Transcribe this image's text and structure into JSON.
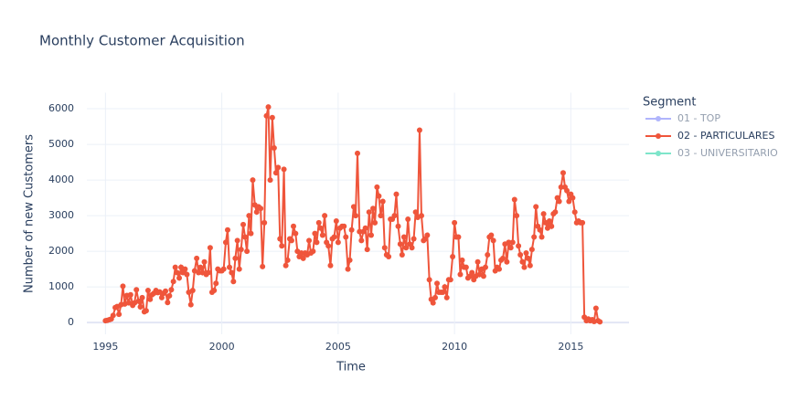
{
  "chart_data": {
    "type": "line",
    "title": "Monthly Customer Acquisition",
    "x_label": "Time",
    "y_label": "Number of new Customers",
    "legend_title": "Segment",
    "xlim": [
      1994.2,
      2017.5
    ],
    "xticks": [
      1995,
      2000,
      2005,
      2010,
      2015
    ],
    "ylim": [
      -330,
      6450
    ],
    "yticks": [
      0,
      1000,
      2000,
      3000,
      4000,
      5000,
      6000
    ],
    "grid": true,
    "legend": "right",
    "x": [
      1995.0,
      1995.08,
      1995.17,
      1995.25,
      1995.33,
      1995.42,
      1995.5,
      1995.58,
      1995.67,
      1995.75,
      1995.83,
      1995.92,
      1996.0,
      1996.08,
      1996.17,
      1996.25,
      1996.33,
      1996.42,
      1996.5,
      1996.58,
      1996.67,
      1996.75,
      1996.83,
      1996.92,
      1997.0,
      1997.08,
      1997.17,
      1997.25,
      1997.33,
      1997.42,
      1997.5,
      1997.58,
      1997.67,
      1997.75,
      1997.83,
      1997.92,
      1998.0,
      1998.08,
      1998.17,
      1998.25,
      1998.33,
      1998.42,
      1998.5,
      1998.58,
      1998.67,
      1998.75,
      1998.83,
      1998.92,
      1999.0,
      1999.08,
      1999.17,
      1999.25,
      1999.33,
      1999.42,
      1999.5,
      1999.58,
      1999.67,
      1999.75,
      1999.83,
      1999.92,
      2000.0,
      2000.08,
      2000.17,
      2000.25,
      2000.33,
      2000.42,
      2000.5,
      2000.58,
      2000.67,
      2000.75,
      2000.83,
      2000.92,
      2001.0,
      2001.08,
      2001.17,
      2001.25,
      2001.33,
      2001.42,
      2001.5,
      2001.58,
      2001.67,
      2001.75,
      2001.83,
      2001.92,
      2002.0,
      2002.08,
      2002.17,
      2002.25,
      2002.33,
      2002.42,
      2002.5,
      2002.58,
      2002.67,
      2002.75,
      2002.83,
      2002.92,
      2003.0,
      2003.08,
      2003.17,
      2003.25,
      2003.33,
      2003.42,
      2003.5,
      2003.58,
      2003.67,
      2003.75,
      2003.83,
      2003.92,
      2004.0,
      2004.08,
      2004.17,
      2004.25,
      2004.33,
      2004.42,
      2004.5,
      2004.58,
      2004.67,
      2004.75,
      2004.83,
      2004.92,
      2005.0,
      2005.08,
      2005.17,
      2005.25,
      2005.33,
      2005.42,
      2005.5,
      2005.58,
      2005.67,
      2005.75,
      2005.83,
      2005.92,
      2006.0,
      2006.08,
      2006.17,
      2006.25,
      2006.33,
      2006.42,
      2006.5,
      2006.58,
      2006.67,
      2006.75,
      2006.83,
      2006.92,
      2007.0,
      2007.08,
      2007.17,
      2007.25,
      2007.33,
      2007.42,
      2007.5,
      2007.58,
      2007.67,
      2007.75,
      2007.83,
      2007.92,
      2008.0,
      2008.08,
      2008.17,
      2008.25,
      2008.33,
      2008.42,
      2008.5,
      2008.58,
      2008.67,
      2008.75,
      2008.83,
      2008.92,
      2009.0,
      2009.08,
      2009.17,
      2009.25,
      2009.33,
      2009.42,
      2009.5,
      2009.58,
      2009.67,
      2009.75,
      2009.83,
      2009.92,
      2010.0,
      2010.08,
      2010.17,
      2010.25,
      2010.33,
      2010.42,
      2010.5,
      2010.58,
      2010.67,
      2010.75,
      2010.83,
      2010.92,
      2011.0,
      2011.08,
      2011.17,
      2011.25,
      2011.33,
      2011.42,
      2011.5,
      2011.58,
      2011.67,
      2011.75,
      2011.83,
      2011.92,
      2012.0,
      2012.08,
      2012.17,
      2012.25,
      2012.33,
      2012.42,
      2012.5,
      2012.58,
      2012.67,
      2012.75,
      2012.83,
      2012.92,
      2013.0,
      2013.08,
      2013.17,
      2013.25,
      2013.33,
      2013.42,
      2013.5,
      2013.58,
      2013.67,
      2013.75,
      2013.83,
      2013.92,
      2014.0,
      2014.08,
      2014.17,
      2014.25,
      2014.33,
      2014.42,
      2014.5,
      2014.58,
      2014.67,
      2014.75,
      2014.83,
      2014.92,
      2015.0,
      2015.08,
      2015.17,
      2015.25,
      2015.33,
      2015.42,
      2015.5,
      2015.58,
      2015.67,
      2015.75,
      2015.83,
      2015.92,
      2016.0,
      2016.08,
      2016.17,
      2016.25
    ],
    "series": [
      {
        "name": "01 - TOP",
        "color": "#636efa",
        "visible": "legendonly"
      },
      {
        "name": "02 - PARTICULARES",
        "color": "#EF553B",
        "visible": true,
        "values": [
          50,
          60,
          80,
          100,
          200,
          420,
          450,
          230,
          500,
          1020,
          520,
          760,
          550,
          780,
          480,
          550,
          920,
          600,
          440,
          700,
          300,
          330,
          900,
          650,
          780,
          820,
          900,
          840,
          860,
          700,
          820,
          880,
          560,
          750,
          920,
          1150,
          1550,
          1400,
          1250,
          1550,
          1400,
          1500,
          1350,
          850,
          500,
          900,
          1450,
          1800,
          1400,
          1550,
          1400,
          1700,
          1350,
          1400,
          2100,
          850,
          900,
          1100,
          1500,
          1450,
          1450,
          1500,
          2250,
          2600,
          1550,
          1400,
          1150,
          1800,
          2300,
          1500,
          2050,
          2750,
          2400,
          2000,
          3000,
          2500,
          4000,
          3300,
          3100,
          3250,
          3200,
          1570,
          2800,
          5800,
          6050,
          4000,
          5750,
          4900,
          4200,
          4350,
          2350,
          2150,
          4300,
          1600,
          1750,
          2350,
          2300,
          2700,
          2500,
          2000,
          1850,
          1950,
          1800,
          1950,
          1900,
          2300,
          1950,
          2000,
          2500,
          2250,
          2800,
          2650,
          2450,
          3000,
          2250,
          2150,
          1600,
          2350,
          2400,
          2850,
          2250,
          2650,
          2700,
          2700,
          2400,
          1500,
          1750,
          2600,
          3250,
          3000,
          4750,
          2550,
          2300,
          2550,
          2650,
          2050,
          3100,
          2450,
          3200,
          2800,
          3800,
          3550,
          3000,
          3400,
          2100,
          1900,
          1850,
          2900,
          2900,
          3000,
          3600,
          2700,
          2200,
          1900,
          2400,
          2100,
          2900,
          2200,
          2100,
          2350,
          3100,
          2950,
          5400,
          3000,
          2300,
          2350,
          2450,
          1200,
          650,
          550,
          700,
          1100,
          850,
          850,
          850,
          1000,
          700,
          1200,
          1200,
          1850,
          2800,
          2400,
          2400,
          1350,
          1750,
          1550,
          1550,
          1250,
          1300,
          1400,
          1200,
          1300,
          1700,
          1350,
          1500,
          1300,
          1550,
          1900,
          2400,
          2450,
          2300,
          1450,
          1550,
          1500,
          1750,
          1800,
          2200,
          1700,
          2250,
          2100,
          2250,
          3450,
          3000,
          2150,
          1900,
          1700,
          1550,
          1950,
          1800,
          1600,
          2050,
          2400,
          3250,
          2700,
          2600,
          2400,
          3050,
          2800,
          2650,
          2850,
          2700,
          3050,
          3100,
          3500,
          3400,
          3800,
          4200,
          3800,
          3700,
          3400,
          3600,
          3500,
          3100,
          2800,
          2850,
          2800,
          2800,
          150,
          50,
          100,
          50,
          80,
          30,
          400,
          50,
          20
        ]
      },
      {
        "name": "03 - UNIVERSITARIO",
        "color": "#00cc96",
        "visible": "legendonly"
      }
    ]
  }
}
